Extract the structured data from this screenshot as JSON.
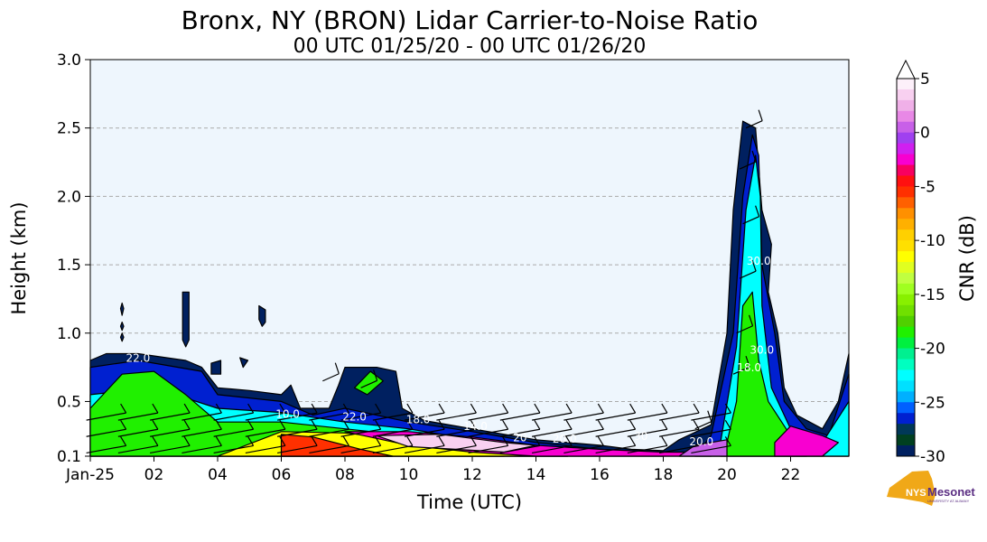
{
  "chart_data": {
    "type": "heatmap",
    "title": "Bronx, NY (BRON) Lidar Carrier-to-Noise Ratio",
    "subtitle": "00 UTC 01/25/20 - 00 UTC 01/26/20",
    "xlabel": "Time (UTC)",
    "ylabel": "Height (km)",
    "xlim": [
      0,
      23.83
    ],
    "ylim": [
      0.1,
      3.0
    ],
    "grid": "horizontal dashed",
    "x_ticks": [
      {
        "value": 0,
        "label": "Jan-25"
      },
      {
        "value": 2,
        "label": "02"
      },
      {
        "value": 4,
        "label": "04"
      },
      {
        "value": 6,
        "label": "06"
      },
      {
        "value": 8,
        "label": "08"
      },
      {
        "value": 10,
        "label": "10"
      },
      {
        "value": 12,
        "label": "12"
      },
      {
        "value": 14,
        "label": "14"
      },
      {
        "value": 16,
        "label": "16"
      },
      {
        "value": 18,
        "label": "18"
      },
      {
        "value": 20,
        "label": "20"
      },
      {
        "value": 22,
        "label": "22"
      }
    ],
    "y_ticks": [
      {
        "value": 0.1,
        "label": "0.1"
      },
      {
        "value": 0.5,
        "label": "0.5"
      },
      {
        "value": 1.0,
        "label": "1.0"
      },
      {
        "value": 1.5,
        "label": "1.5"
      },
      {
        "value": 2.0,
        "label": "2.0"
      },
      {
        "value": 2.5,
        "label": "2.5"
      },
      {
        "value": 3.0,
        "label": "3.0"
      }
    ],
    "colorbar": {
      "label": "CNR (dB)",
      "range": [
        -30,
        5
      ],
      "extend": "max",
      "ticks": [
        {
          "value": 5,
          "label": "5"
        },
        {
          "value": 0,
          "label": "0"
        },
        {
          "value": -5,
          "label": "-5"
        },
        {
          "value": -10,
          "label": "-10"
        },
        {
          "value": -15,
          "label": "-15"
        },
        {
          "value": -20,
          "label": "-20"
        },
        {
          "value": -25,
          "label": "-25"
        },
        {
          "value": -30,
          "label": "-30"
        }
      ],
      "colors_top_to_bottom": [
        "#fdf0fa",
        "#f8d0f0",
        "#f0b0e8",
        "#e888e6",
        "#c860e8",
        "#a040f0",
        "#d020f0",
        "#f800d0",
        "#f80060",
        "#ff1010",
        "#ff3000",
        "#ff6000",
        "#ff9000",
        "#ffb000",
        "#ffd000",
        "#ffe000",
        "#ffff00",
        "#e0ff20",
        "#c0ff40",
        "#a0ff20",
        "#88f000",
        "#70e000",
        "#50d000",
        "#20f000",
        "#00f040",
        "#00f090",
        "#00ffc0",
        "#00ffff",
        "#00e0ff",
        "#00b0ff",
        "#0060ff",
        "#0020d0",
        "#003858",
        "#004020",
        "#002060"
      ]
    },
    "regions": [
      {
        "cnr": -29,
        "points": [
          [
            0,
            0.8
          ],
          [
            0.5,
            0.85
          ],
          [
            1.5,
            0.85
          ],
          [
            3,
            0.8
          ],
          [
            3.5,
            0.75
          ],
          [
            4,
            0.6
          ],
          [
            5,
            0.58
          ],
          [
            6,
            0.55
          ],
          [
            6.3,
            0.62
          ],
          [
            6.6,
            0.45
          ],
          [
            7.5,
            0.45
          ],
          [
            7.8,
            0.62
          ],
          [
            8,
            0.75
          ],
          [
            9,
            0.75
          ],
          [
            9.6,
            0.72
          ],
          [
            9.8,
            0.45
          ],
          [
            10.5,
            0.36
          ],
          [
            12,
            0.3
          ],
          [
            14,
            0.22
          ],
          [
            16,
            0.18
          ],
          [
            17,
            0.15
          ],
          [
            18,
            0.14
          ],
          [
            18.5,
            0.22
          ],
          [
            19.5,
            0.33
          ],
          [
            20,
            1.0
          ],
          [
            20.2,
            1.9
          ],
          [
            20.5,
            2.55
          ],
          [
            20.9,
            2.5
          ],
          [
            21.1,
            1.9
          ],
          [
            21.4,
            1.65
          ],
          [
            21.3,
            1.3
          ],
          [
            21.6,
            1.0
          ],
          [
            21.8,
            0.6
          ],
          [
            22.2,
            0.4
          ],
          [
            23,
            0.3
          ],
          [
            23.5,
            0.5
          ],
          [
            23.83,
            0.85
          ],
          [
            23.83,
            0.1
          ],
          [
            0,
            0.1
          ]
        ]
      },
      {
        "cnr": -26,
        "points": [
          [
            0,
            0.75
          ],
          [
            1.5,
            0.8
          ],
          [
            3.5,
            0.72
          ],
          [
            4,
            0.55
          ],
          [
            6,
            0.5
          ],
          [
            7,
            0.4
          ],
          [
            8,
            0.45
          ],
          [
            10,
            0.35
          ],
          [
            12,
            0.28
          ],
          [
            14,
            0.2
          ],
          [
            16,
            0.15
          ],
          [
            18,
            0.12
          ],
          [
            18,
            0.1
          ],
          [
            0,
            0.1
          ]
        ]
      },
      {
        "cnr": -26,
        "points": [
          [
            19.5,
            0.25
          ],
          [
            20.2,
            1.0
          ],
          [
            20.5,
            2.0
          ],
          [
            20.8,
            2.45
          ],
          [
            21,
            2.3
          ],
          [
            21.1,
            1.5
          ],
          [
            21.5,
            1.0
          ],
          [
            21.8,
            0.5
          ],
          [
            22.5,
            0.3
          ],
          [
            23.2,
            0.25
          ],
          [
            23.83,
            0.7
          ],
          [
            23.83,
            0.1
          ],
          [
            19,
            0.1
          ]
        ]
      },
      {
        "cnr": -22,
        "points": [
          [
            0,
            0.55
          ],
          [
            2,
            0.6
          ],
          [
            4,
            0.45
          ],
          [
            6,
            0.42
          ],
          [
            8,
            0.35
          ],
          [
            10,
            0.3
          ],
          [
            12,
            0.22
          ],
          [
            14,
            0.15
          ],
          [
            15,
            0.1
          ],
          [
            0,
            0.1
          ]
        ]
      },
      {
        "cnr": -22,
        "points": [
          [
            19.8,
            0.2
          ],
          [
            20.3,
            0.9
          ],
          [
            20.6,
            1.9
          ],
          [
            20.9,
            2.3
          ],
          [
            21.05,
            2.0
          ],
          [
            21.1,
            1.2
          ],
          [
            21.4,
            0.6
          ],
          [
            22,
            0.3
          ],
          [
            23,
            0.2
          ],
          [
            23.83,
            0.5
          ],
          [
            23.83,
            0.1
          ],
          [
            19.8,
            0.1
          ]
        ]
      },
      {
        "cnr": -18,
        "points": [
          [
            0,
            0.45
          ],
          [
            1,
            0.7
          ],
          [
            2,
            0.72
          ],
          [
            3,
            0.55
          ],
          [
            4,
            0.35
          ],
          [
            6,
            0.35
          ],
          [
            8,
            0.3
          ],
          [
            10,
            0.25
          ],
          [
            12,
            0.18
          ],
          [
            13,
            0.1
          ],
          [
            0,
            0.1
          ]
        ]
      },
      {
        "cnr": -18,
        "points": [
          [
            20,
            0.2
          ],
          [
            20.3,
            0.5
          ],
          [
            20.5,
            1.2
          ],
          [
            20.8,
            1.3
          ],
          [
            21,
            0.8
          ],
          [
            21.3,
            0.5
          ],
          [
            22,
            0.25
          ],
          [
            22.5,
            0.1
          ],
          [
            20,
            0.1
          ]
        ]
      },
      {
        "cnr": -18,
        "points": [
          [
            8.3,
            0.6
          ],
          [
            8.8,
            0.72
          ],
          [
            9.2,
            0.65
          ],
          [
            8.7,
            0.55
          ]
        ]
      },
      {
        "cnr": -11,
        "points": [
          [
            4,
            0.1
          ],
          [
            6,
            0.28
          ],
          [
            8,
            0.27
          ],
          [
            10,
            0.22
          ],
          [
            12,
            0.15
          ],
          [
            14,
            0.12
          ],
          [
            15,
            0.1
          ]
        ]
      },
      {
        "cnr": -5,
        "points": [
          [
            6,
            0.26
          ],
          [
            7,
            0.24
          ],
          [
            8.5,
            0.15
          ],
          [
            9.5,
            0.1
          ],
          [
            6,
            0.1
          ]
        ]
      },
      {
        "cnr": -2,
        "points": [
          [
            8,
            0.28
          ],
          [
            10,
            0.28
          ],
          [
            12,
            0.24
          ],
          [
            14,
            0.18
          ],
          [
            16,
            0.15
          ],
          [
            18,
            0.13
          ],
          [
            19.5,
            0.13
          ],
          [
            19.5,
            0.1
          ],
          [
            14,
            0.1
          ],
          [
            12,
            0.13
          ],
          [
            10,
            0.18
          ]
        ]
      },
      {
        "cnr": 4,
        "points": [
          [
            9,
            0.25
          ],
          [
            11,
            0.26
          ],
          [
            13,
            0.2
          ],
          [
            14,
            0.18
          ],
          [
            13,
            0.13
          ],
          [
            10,
            0.17
          ]
        ]
      },
      {
        "cnr": 1,
        "points": [
          [
            18.5,
            0.1
          ],
          [
            19,
            0.18
          ],
          [
            20,
            0.22
          ],
          [
            20,
            0.1
          ]
        ]
      },
      {
        "cnr": -2,
        "points": [
          [
            21.5,
            0.2
          ],
          [
            22,
            0.32
          ],
          [
            23,
            0.25
          ],
          [
            23.5,
            0.2
          ],
          [
            23,
            0.1
          ],
          [
            21.5,
            0.1
          ]
        ]
      },
      {
        "cnr": -29,
        "points": [
          [
            0.95,
            1.18
          ],
          [
            1.0,
            1.13
          ],
          [
            1.05,
            1.18
          ],
          [
            1.0,
            1.22
          ]
        ]
      },
      {
        "cnr": -29,
        "points": [
          [
            0.95,
            1.05
          ],
          [
            1.0,
            1.02
          ],
          [
            1.05,
            1.05
          ],
          [
            1.0,
            1.08
          ]
        ]
      },
      {
        "cnr": -29,
        "points": [
          [
            0.95,
            0.97
          ],
          [
            1.0,
            0.94
          ],
          [
            1.05,
            0.97
          ],
          [
            1.0,
            1.0
          ]
        ]
      },
      {
        "cnr": -29,
        "points": [
          [
            2.9,
            1.3
          ],
          [
            3.1,
            1.3
          ],
          [
            3.1,
            0.95
          ],
          [
            3.0,
            0.9
          ],
          [
            2.9,
            0.95
          ]
        ]
      },
      {
        "cnr": -29,
        "points": [
          [
            5.3,
            1.2
          ],
          [
            5.5,
            1.17
          ],
          [
            5.5,
            1.08
          ],
          [
            5.4,
            1.05
          ],
          [
            5.3,
            1.1
          ]
        ]
      },
      {
        "cnr": -29,
        "points": [
          [
            3.8,
            0.78
          ],
          [
            4.1,
            0.8
          ],
          [
            4.1,
            0.7
          ],
          [
            3.8,
            0.7
          ]
        ]
      },
      {
        "cnr": -29,
        "points": [
          [
            4.7,
            0.82
          ],
          [
            4.95,
            0.8
          ],
          [
            4.8,
            0.75
          ]
        ]
      }
    ],
    "annotations": [
      {
        "text": "22.0",
        "t": 1.5,
        "h": 0.79
      },
      {
        "text": "10.0",
        "t": 6.2,
        "h": 0.38
      },
      {
        "text": "22.0",
        "t": 8.3,
        "h": 0.36
      },
      {
        "text": "18.0",
        "t": 10.3,
        "h": 0.34
      },
      {
        "text": "14.0",
        "t": 12.1,
        "h": 0.29
      },
      {
        "text": "20",
        "t": 13.5,
        "h": 0.21
      },
      {
        "text": "20.0",
        "t": 14.9,
        "h": 0.2
      },
      {
        "text": "30",
        "t": 17.3,
        "h": 0.22
      },
      {
        "text": "20.0",
        "t": 19.2,
        "h": 0.18
      },
      {
        "text": "30.0",
        "t": 21.0,
        "h": 1.5
      },
      {
        "text": "30.0",
        "t": 21.1,
        "h": 0.85
      },
      {
        "text": "18.0",
        "t": 20.7,
        "h": 0.72
      }
    ]
  },
  "logo": {
    "name": "NYS",
    "brand": "Mesonet",
    "org": "UNIVERSITY AT ALBANY"
  }
}
